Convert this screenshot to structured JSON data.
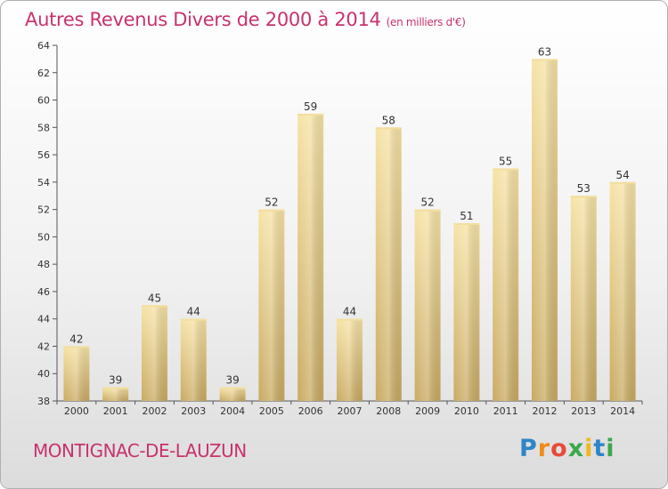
{
  "header": {
    "title": "Autres Revenus Divers de 2000 à 2014",
    "unit": "(en milliers d'€)"
  },
  "footer": {
    "commune": "MONTIGNAC-DE-LAUZUN",
    "brand": {
      "letters": [
        "P",
        "r",
        "o",
        "x",
        "i",
        "t",
        "i"
      ],
      "colors": [
        "#2e86c8",
        "#f08a1c",
        "#e84a3a",
        "#3aa84a",
        "#f0b81c",
        "#2e86c8",
        "#3aa84a"
      ]
    }
  },
  "chart_data": {
    "type": "bar",
    "title": "Autres Revenus Divers de 2000 à 2014",
    "categories": [
      "2000",
      "2001",
      "2002",
      "2003",
      "2004",
      "2005",
      "2006",
      "2007",
      "2008",
      "2009",
      "2010",
      "2011",
      "2012",
      "2013",
      "2014"
    ],
    "values": [
      42,
      39,
      45,
      44,
      39,
      52,
      59,
      44,
      58,
      52,
      51,
      55,
      63,
      53,
      54
    ],
    "ylim": [
      38,
      64
    ],
    "yticks": [
      38,
      40,
      42,
      44,
      46,
      48,
      50,
      52,
      54,
      56,
      58,
      60,
      62,
      64
    ],
    "grid": false,
    "bar_color": "#e9ca7c"
  }
}
